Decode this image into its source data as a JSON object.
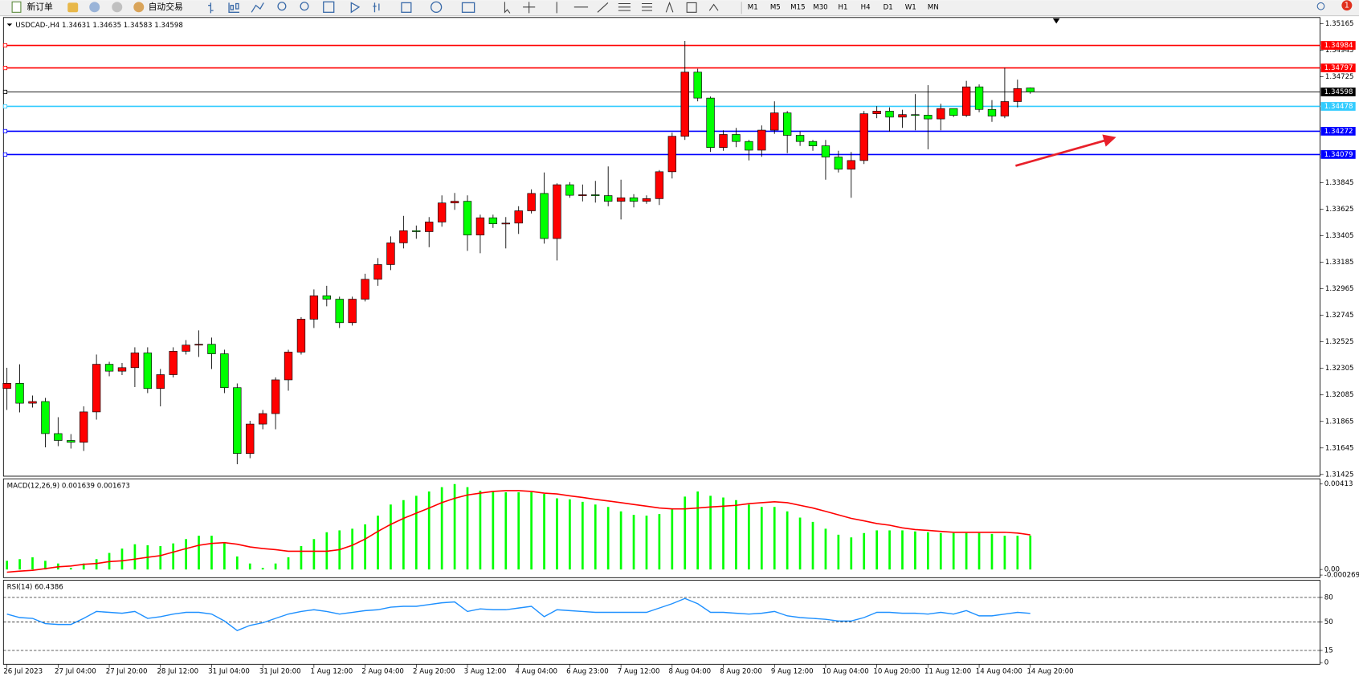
{
  "toolbar": {
    "buttons": [
      "新订单",
      "自动交易"
    ],
    "timeframes": [
      "M1",
      "M5",
      "M15",
      "M30",
      "H1",
      "H4",
      "D1",
      "W1",
      "MN"
    ],
    "badge": "1"
  },
  "chart_data": [
    {
      "type": "candlestick",
      "title": "USDCAD-,H4  1.34631 1.34635 1.34583 1.34598",
      "x_labels": [
        "26 Jul 2023",
        "27 Jul 04:00",
        "27 Jul 20:00",
        "28 Jul 12:00",
        "31 Jul 04:00",
        "31 Jul 20:00",
        "1 Aug 12:00",
        "2 Aug 04:00",
        "2 Aug 20:00",
        "3 Aug 12:00",
        "4 Aug 04:00",
        "6 Aug 23:00",
        "7 Aug 12:00",
        "8 Aug 04:00",
        "8 Aug 20:00",
        "9 Aug 12:00",
        "10 Aug 04:00",
        "10 Aug 20:00",
        "11 Aug 12:00",
        "14 Aug 04:00",
        "14 Aug 20:00"
      ],
      "open": [
        1.32138,
        1.32181,
        1.32016,
        1.3203,
        1.31764,
        1.31707,
        1.31692,
        1.31944,
        1.32339,
        1.32282,
        1.32311,
        1.32433,
        1.32138,
        1.32253,
        1.32447,
        1.32498,
        1.32505,
        1.32426,
        1.32145,
        1.31599,
        1.31843,
        1.3193,
        1.3221,
        1.3244,
        1.32713,
        1.32907,
        1.32879,
        1.32684,
        1.32879,
        1.33044,
        1.33166,
        1.33346,
        1.33447,
        1.33439,
        1.33519,
        1.33677,
        1.33691,
        1.33411,
        1.33554,
        1.33504,
        1.3351,
        1.33612,
        1.33756,
        1.33382,
        1.33828,
        1.33741,
        1.33745,
        1.33738,
        1.33691,
        1.3372,
        1.33691,
        1.33713,
        1.33936,
        1.3423,
        1.34762,
        1.34547,
        1.34137,
        1.34245,
        1.34187,
        1.34115,
        1.34281,
        1.34424,
        1.34238,
        1.34187,
        1.34151,
        1.34058,
        1.33957,
        1.34029,
        1.34417,
        1.34439,
        1.34389,
        1.3441,
        1.34405,
        1.34374,
        1.3446,
        1.34403,
        1.3464,
        1.34453,
        1.34398,
        1.34518,
        1.34631
      ],
      "high": [
        1.3231,
        1.32339,
        1.3208,
        1.3206,
        1.319,
        1.3176,
        1.3199,
        1.3242,
        1.3236,
        1.3235,
        1.3248,
        1.3248,
        1.323,
        1.3248,
        1.3254,
        1.3262,
        1.3256,
        1.3246,
        1.3218,
        1.3187,
        1.3196,
        1.3223,
        1.3246,
        1.3273,
        1.3296,
        1.3299,
        1.329,
        1.329,
        1.3309,
        1.3322,
        1.334,
        1.3357,
        1.3349,
        1.3356,
        1.3374,
        1.3376,
        1.3374,
        1.3358,
        1.3358,
        1.3356,
        1.3365,
        1.3379,
        1.3393,
        1.3384,
        1.3385,
        1.3383,
        1.3386,
        1.3398,
        1.3387,
        1.3375,
        1.3374,
        1.3395,
        1.3426,
        1.35021,
        1.3479,
        1.3456,
        1.3428,
        1.343,
        1.342,
        1.3432,
        1.3452,
        1.3444,
        1.3427,
        1.342,
        1.342,
        1.3411,
        1.341,
        1.3444,
        1.3448,
        1.3447,
        1.3445,
        1.3458,
        1.34654,
        1.345,
        1.3444,
        1.3469,
        1.3466,
        1.3453,
        1.34798,
        1.347,
        1.34635
      ],
      "low": [
        1.3196,
        1.3194,
        1.3198,
        1.3165,
        1.3166,
        1.3164,
        1.3162,
        1.3188,
        1.3224,
        1.3225,
        1.3215,
        1.321,
        1.3199,
        1.3223,
        1.3242,
        1.324,
        1.323,
        1.321,
        1.3151,
        1.3156,
        1.318,
        1.318,
        1.3212,
        1.3242,
        1.3264,
        1.3282,
        1.3264,
        1.3266,
        1.3286,
        1.3299,
        1.3312,
        1.333,
        1.3338,
        1.3331,
        1.3348,
        1.3362,
        1.3328,
        1.3326,
        1.3347,
        1.333,
        1.3342,
        1.3359,
        1.3334,
        1.332,
        1.3372,
        1.3369,
        1.3368,
        1.3365,
        1.3354,
        1.3364,
        1.3367,
        1.3366,
        1.3388,
        1.342,
        1.3452,
        1.341,
        1.3411,
        1.3414,
        1.3403,
        1.3406,
        1.3425,
        1.3409,
        1.3415,
        1.3411,
        1.3387,
        1.3393,
        1.3372,
        1.34,
        1.3438,
        1.3427,
        1.343,
        1.3428,
        1.34122,
        1.3428,
        1.3439,
        1.3439,
        1.3443,
        1.3435,
        1.3438,
        1.3447,
        1.34583
      ],
      "close": [
        1.32181,
        1.32016,
        1.3203,
        1.31764,
        1.31707,
        1.31692,
        1.31944,
        1.32339,
        1.32282,
        1.32311,
        1.32433,
        1.32138,
        1.32253,
        1.32447,
        1.32498,
        1.32505,
        1.32426,
        1.32145,
        1.31599,
        1.31843,
        1.3193,
        1.3221,
        1.3244,
        1.32713,
        1.32907,
        1.32879,
        1.32684,
        1.32879,
        1.33044,
        1.33166,
        1.33346,
        1.33447,
        1.33439,
        1.33519,
        1.33677,
        1.33691,
        1.33411,
        1.33554,
        1.33504,
        1.3351,
        1.33612,
        1.33756,
        1.33382,
        1.33828,
        1.33741,
        1.33745,
        1.33738,
        1.33691,
        1.3372,
        1.33691,
        1.33713,
        1.33936,
        1.3423,
        1.34762,
        1.34547,
        1.34137,
        1.34245,
        1.34187,
        1.34115,
        1.34281,
        1.34424,
        1.34238,
        1.34187,
        1.34151,
        1.34058,
        1.33957,
        1.34029,
        1.34417,
        1.34439,
        1.34389,
        1.3441,
        1.34405,
        1.34374,
        1.3446,
        1.34403,
        1.3464,
        1.34453,
        1.34398,
        1.34518,
        1.34626,
        1.34598
      ],
      "bull_color": "#ff0000",
      "bear_color": "#00ff00",
      "ylim": [
        1.31425,
        1.35165
      ],
      "yticks": [
        1.35165,
        1.34945,
        1.34725,
        1.33845,
        1.33625,
        1.33405,
        1.33185,
        1.32965,
        1.32745,
        1.32525,
        1.32305,
        1.32085,
        1.31865,
        1.31645,
        1.31425
      ],
      "levels": [
        {
          "value": 1.34984,
          "color": "#ff0000"
        },
        {
          "value": 1.34797,
          "color": "#ff0000"
        },
        {
          "value": 1.34598,
          "color": "#000000"
        },
        {
          "value": 1.34478,
          "color": "#33ccff"
        },
        {
          "value": 1.34272,
          "color": "#0000ff"
        },
        {
          "value": 1.34079,
          "color": "#0000ff"
        }
      ]
    },
    {
      "type": "macd",
      "title": "MACD(12,26,9) 0.001639 0.001673",
      "histogram": {
        "color": "#00ff00",
        "values": [
          0.00042,
          0.0005,
          0.00059,
          0.00042,
          0.00029,
          8e-05,
          0.00029,
          0.0005,
          0.0008,
          0.00101,
          0.00122,
          0.00117,
          0.00113,
          0.00126,
          0.00147,
          0.00163,
          0.00163,
          0.0013,
          0.00063,
          0.00029,
          8e-05,
          0.00029,
          0.00059,
          0.00113,
          0.00147,
          0.0018,
          0.00189,
          0.00197,
          0.00218,
          0.0026,
          0.00314,
          0.00335,
          0.00356,
          0.00377,
          0.00398,
          0.00413,
          0.00398,
          0.00381,
          0.00377,
          0.00373,
          0.00373,
          0.00373,
          0.00365,
          0.00344,
          0.00339,
          0.00327,
          0.00314,
          0.00302,
          0.00281,
          0.00264,
          0.0026,
          0.00268,
          0.00293,
          0.00352,
          0.00377,
          0.00356,
          0.00348,
          0.00335,
          0.00314,
          0.00302,
          0.00302,
          0.00281,
          0.00251,
          0.0023,
          0.00197,
          0.00168,
          0.00155,
          0.00176,
          0.00189,
          0.00189,
          0.00189,
          0.00184,
          0.0018,
          0.00176,
          0.00176,
          0.00176,
          0.00176,
          0.00172,
          0.00163,
          0.00163,
          0.001639
        ]
      },
      "signal": {
        "color": "#ff0000",
        "values": [
          -0.00013,
          -8e-05,
          -4e-05,
          4e-05,
          0.00013,
          0.00017,
          0.00025,
          0.00029,
          0.00038,
          0.00042,
          0.0005,
          0.00059,
          0.00067,
          0.00084,
          0.00101,
          0.00117,
          0.00126,
          0.0013,
          0.00122,
          0.00109,
          0.00101,
          0.00096,
          0.00088,
          0.00088,
          0.00088,
          0.00088,
          0.00096,
          0.00117,
          0.00147,
          0.00184,
          0.00218,
          0.00247,
          0.00272,
          0.00297,
          0.00323,
          0.00344,
          0.0036,
          0.00369,
          0.00377,
          0.00381,
          0.00381,
          0.00377,
          0.00369,
          0.00365,
          0.00356,
          0.00348,
          0.00339,
          0.00331,
          0.00323,
          0.00314,
          0.00306,
          0.00297,
          0.00293,
          0.00293,
          0.00297,
          0.00302,
          0.00306,
          0.0031,
          0.00318,
          0.00323,
          0.00327,
          0.00323,
          0.0031,
          0.00297,
          0.00281,
          0.00264,
          0.00247,
          0.00235,
          0.00222,
          0.00214,
          0.00201,
          0.00193,
          0.00189,
          0.00184,
          0.0018,
          0.0018,
          0.0018,
          0.0018,
          0.0018,
          0.00176,
          0.001673
        ]
      },
      "ylim": [
        -0.000269,
        0.00413
      ],
      "yticks": [
        0.00413,
        {
          "value": 0,
          "label": "0.00"
        },
        -0.000269
      ]
    },
    {
      "type": "line",
      "title": "RSI(14) 60.4386",
      "color": "#1e90ff",
      "values": [
        59.6,
        55.3,
        54.3,
        47.9,
        46.8,
        46.8,
        54.3,
        62.8,
        61.7,
        60.6,
        62.8,
        54.3,
        56.4,
        59.6,
        61.7,
        61.7,
        59.6,
        51.1,
        39.4,
        45.7,
        48.9,
        54.3,
        59.6,
        62.8,
        64.9,
        62.8,
        59.6,
        61.7,
        63.8,
        64.9,
        68.1,
        69.1,
        69.1,
        71.3,
        73.4,
        74.5,
        62.8,
        66,
        64.9,
        64.9,
        67,
        69.1,
        56.4,
        64.9,
        63.8,
        62.8,
        61.7,
        61.7,
        61.7,
        61.7,
        61.7,
        67,
        72.3,
        78.7,
        72.3,
        61.7,
        61.7,
        60.6,
        59.6,
        60.6,
        62.8,
        57.4,
        55.3,
        54.3,
        53.2,
        51.1,
        51.1,
        55.3,
        61.7,
        61.7,
        60.6,
        60.6,
        59.6,
        61.7,
        59.6,
        63.8,
        57.4,
        57.4,
        59.6,
        61.7,
        60.4386
      ],
      "ylim": [
        0,
        100
      ],
      "yticks": [
        80,
        50,
        15,
        0
      ],
      "levels": [
        80,
        50,
        15
      ]
    }
  ]
}
